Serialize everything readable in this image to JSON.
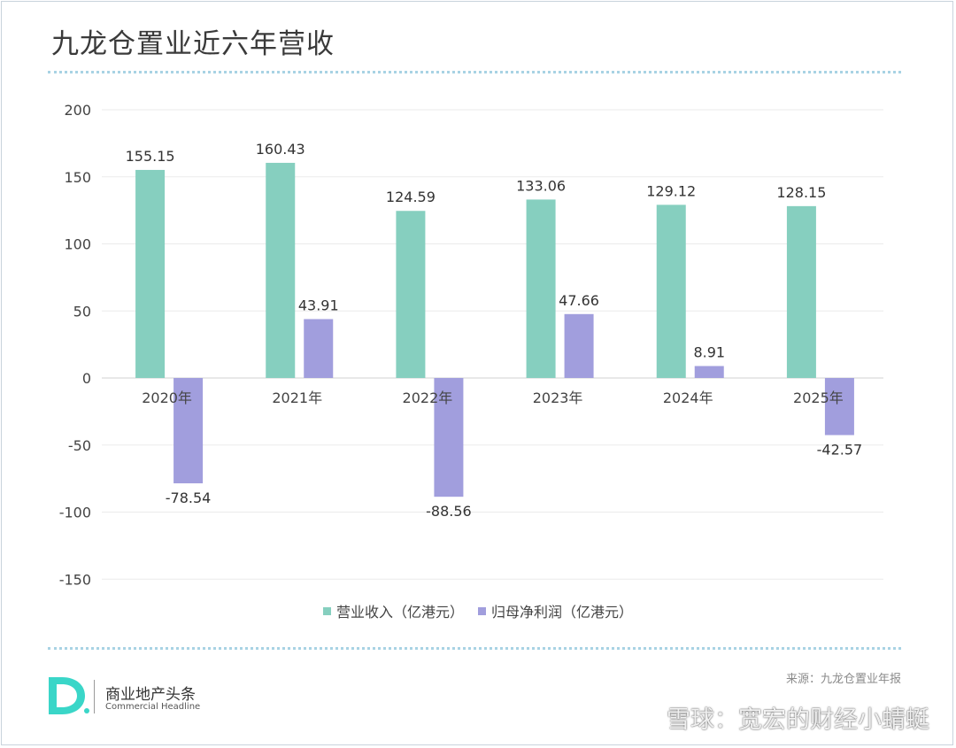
{
  "page": {
    "title": "九龙仓置业近六年营收",
    "source": "来源：九龙仓置业年报",
    "brand_cn": "商业地产头条",
    "brand_en": "Commercial Headline",
    "watermark": "雪球：宽宏的财经小蜻蜓"
  },
  "colors": {
    "revenue": "#86cfbf",
    "profit": "#a19edd",
    "logo": "#3ad6c8"
  },
  "chart_data": {
    "type": "bar",
    "title": "九龙仓置业近六年营收",
    "categories": [
      "2020年",
      "2021年",
      "2022年",
      "2023年",
      "2024年",
      "2025年"
    ],
    "series": [
      {
        "name": "营业收入（亿港元）",
        "values": [
          155.15,
          160.43,
          124.59,
          133.06,
          129.12,
          128.15
        ]
      },
      {
        "name": "归母净利润（亿港元）",
        "values": [
          -78.54,
          43.91,
          -88.56,
          47.66,
          8.91,
          -42.57
        ]
      }
    ],
    "data_labels": [
      [
        "155.15",
        "160.43",
        "124.59",
        "133.06",
        "129.12",
        "128.15"
      ],
      [
        "-78.54",
        "43.91",
        "-88.56",
        "47.66",
        "8.91",
        "-42.57"
      ]
    ],
    "y_ticks": [
      200,
      150,
      100,
      50,
      0,
      -50,
      -100,
      -150
    ],
    "y_tick_labels": [
      "200",
      "150",
      "100",
      "50",
      "0",
      "-50",
      "-100",
      "-150"
    ],
    "ylim": [
      -150,
      200
    ],
    "grid": true,
    "legend": "bottom"
  }
}
